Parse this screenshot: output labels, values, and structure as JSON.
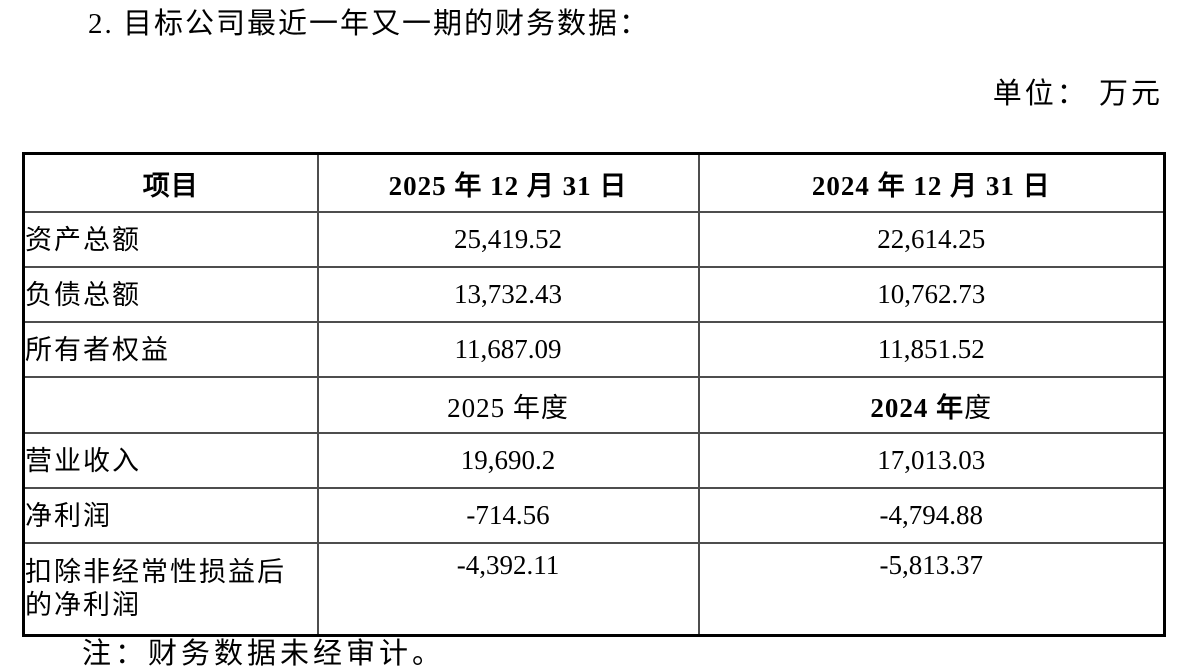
{
  "page": {
    "title": "2. 目标公司最近一年又一期的财务数据：",
    "unit_label": "单位： 万元",
    "note": "注：财务数据未经审计。"
  },
  "colors": {
    "background": "#ffffff",
    "text": "#000000",
    "outer_border": "#000000",
    "inner_border": "#4d4d4d"
  },
  "table": {
    "header": {
      "item": "项目",
      "col_2025": "2025 年 12 月 31 日",
      "col_2024": "2024 年 12 月 31 日"
    },
    "balance_rows": [
      {
        "label": "资产总额",
        "v2025": "25,419.52",
        "v2024": "22,614.25"
      },
      {
        "label": "负债总额",
        "v2025": "13,732.43",
        "v2024": "10,762.73"
      },
      {
        "label": "所有者权益",
        "v2025": "11,687.09",
        "v2024": "11,851.52"
      }
    ],
    "period_header": {
      "item": "",
      "col_2025": "2025 年度",
      "col_2024_bold": "2024 年",
      "col_2024_regular": "度"
    },
    "income_rows": [
      {
        "label": "营业收入",
        "v2025": "19,690.2",
        "v2024": "17,013.03"
      },
      {
        "label": "净利润",
        "v2025": "-714.56",
        "v2024": "-4,794.88"
      },
      {
        "label": "扣除非经常性损益后的净利润",
        "v2025": "-4,392.11",
        "v2024": "-5,813.37"
      }
    ]
  }
}
